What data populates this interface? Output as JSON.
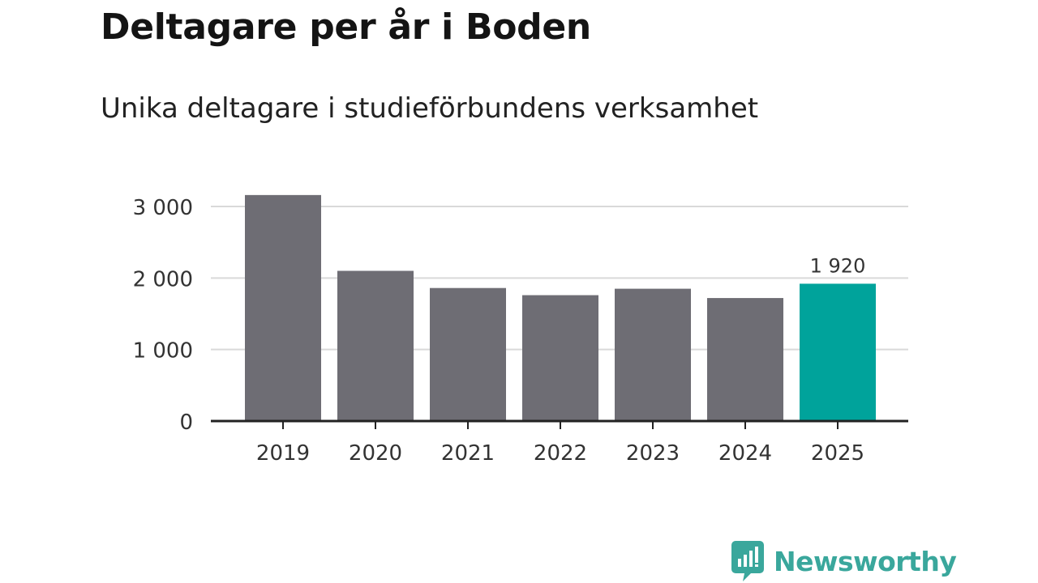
{
  "chart_data": {
    "type": "bar",
    "title": "Deltagare per år i Boden",
    "subtitle": "Unika deltagare i studieförbundens verksamhet",
    "categories": [
      "2019",
      "2020",
      "2021",
      "2022",
      "2023",
      "2024",
      "2025"
    ],
    "values": [
      3160,
      2100,
      1860,
      1760,
      1850,
      1720,
      1920
    ],
    "highlight_index": 6,
    "highlight_label": "1 920",
    "ylim": [
      0,
      3000
    ],
    "yticks": [
      0,
      1000,
      2000,
      3000
    ],
    "ytick_labels": [
      "0",
      "1 000",
      "2 000",
      "3 000"
    ],
    "xlabel": "",
    "ylabel": "",
    "grid": true,
    "colors": {
      "bar": "#6e6d74",
      "highlight": "#00a39b",
      "grid": "#d9d9d9",
      "axis": "#222222"
    }
  },
  "brand": {
    "name": "Newsworthy",
    "logo_icon": "newsworthy-logo-icon",
    "color": "#3aa79c"
  }
}
